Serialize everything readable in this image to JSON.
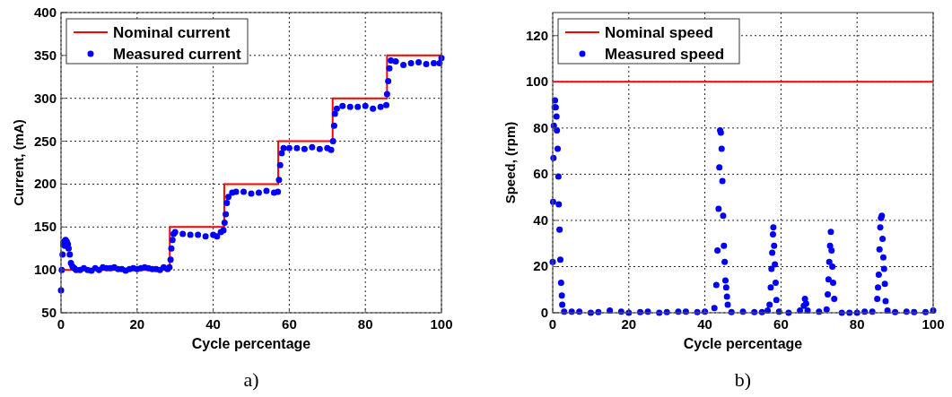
{
  "chart_data": [
    {
      "type": "scatter",
      "xlabel": "Cycle percentage",
      "ylabel": "Current, (mA)",
      "xlim": [
        0,
        100
      ],
      "ylim": [
        50,
        400
      ],
      "xticks": [
        0,
        20,
        40,
        60,
        80,
        100
      ],
      "yticks": [
        50,
        100,
        150,
        200,
        250,
        300,
        350,
        400
      ],
      "grid": true,
      "legend": "top left",
      "annotations": [
        "a)"
      ],
      "series": [
        {
          "name": "Nominal current",
          "type": "step",
          "color": "#ff0000",
          "marker": "none",
          "x": [
            0,
            28.6,
            42.9,
            57.1,
            71.4,
            85.7,
            100
          ],
          "values": [
            100,
            150,
            200,
            250,
            300,
            350,
            350
          ]
        },
        {
          "name": "Measured current",
          "color": "#0000ff",
          "marker": "circle",
          "x": [
            0,
            0.2,
            0.4,
            0.6,
            0.8,
            1.0,
            1.2,
            1.5,
            1.8,
            2,
            2.3,
            2.6,
            3,
            3.5,
            4,
            5,
            6,
            7,
            8,
            9,
            10,
            11,
            12,
            13,
            14,
            15,
            16,
            17,
            18,
            19,
            20,
            21,
            22,
            23,
            24,
            25,
            26,
            27,
            28,
            28.5,
            28.8,
            29,
            29.3,
            29.6,
            30,
            32,
            34,
            36,
            38,
            40,
            41,
            42,
            42.7,
            43,
            43.3,
            43.6,
            44,
            45,
            46,
            48,
            50,
            52,
            54,
            56,
            57,
            57.3,
            57.6,
            58,
            58.5,
            60,
            62,
            64,
            66,
            68,
            70,
            71,
            71.5,
            71.8,
            72,
            72.5,
            74,
            76,
            78,
            80,
            82,
            84,
            85.5,
            85.7,
            86,
            86.3,
            86.7,
            88,
            90,
            92,
            94,
            96,
            98,
            99.5,
            100
          ],
          "values": [
            76,
            100,
            118,
            130,
            133,
            128,
            135,
            133,
            130,
            125,
            118,
            108,
            104,
            102,
            100,
            100,
            102,
            100,
            99,
            102,
            100,
            103,
            102,
            102,
            103,
            101,
            101,
            99,
            101,
            102,
            101,
            102,
            103,
            102,
            101,
            101,
            100,
            103,
            101,
            103,
            112,
            125,
            135,
            142,
            144,
            142,
            141,
            141,
            139,
            141,
            139,
            144,
            146,
            155,
            165,
            178,
            185,
            190,
            191,
            191,
            189,
            190,
            192,
            190,
            191,
            205,
            222,
            236,
            242,
            242,
            242,
            241,
            243,
            241,
            242,
            240,
            250,
            268,
            282,
            288,
            291,
            290,
            290,
            291,
            288,
            290,
            292,
            305,
            320,
            335,
            344,
            343,
            339,
            341,
            342,
            340,
            341,
            341,
            347
          ]
        }
      ]
    },
    {
      "type": "scatter",
      "xlabel": "Cycle percentage",
      "ylabel": "Speed, (rpm)",
      "xlim": [
        0,
        100
      ],
      "ylim": [
        0,
        130
      ],
      "xticks": [
        0,
        20,
        40,
        60,
        80,
        100
      ],
      "yticks": [
        0,
        20,
        40,
        60,
        80,
        100,
        120
      ],
      "grid": true,
      "legend": "top left",
      "annotations": [
        "b)"
      ],
      "series": [
        {
          "name": "Nominal speed",
          "type": "line",
          "color": "#ff0000",
          "marker": "none",
          "x": [
            0,
            100
          ],
          "values": [
            100,
            100
          ]
        },
        {
          "name": "Measured speed",
          "color": "#0000ff",
          "marker": "circle",
          "x": [
            0,
            0.1,
            0.2,
            0.3,
            0.5,
            0.6,
            0.8,
            1.0,
            1.1,
            1.3,
            1.5,
            1.6,
            1.8,
            2.0,
            2.2,
            2.4,
            2.5,
            3,
            5,
            7,
            10,
            12,
            15,
            18,
            20,
            23,
            25,
            28,
            30,
            33,
            35,
            38,
            40,
            42.5,
            43,
            43.3,
            43.6,
            43.8,
            44,
            44.2,
            44.4,
            44.6,
            44.8,
            45,
            45.2,
            45.4,
            45.6,
            45.8,
            46,
            47,
            50,
            53,
            55,
            56.5,
            57,
            57.3,
            57.5,
            57.7,
            57.9,
            58,
            58.2,
            58.4,
            58.6,
            58.8,
            59.5,
            62,
            65,
            66,
            66.3,
            66.6,
            67,
            70,
            72,
            72.3,
            72.5,
            72.7,
            72.9,
            73.1,
            73.3,
            73.5,
            73.7,
            74,
            76,
            78,
            80,
            82,
            84,
            85.3,
            85.5,
            85.7,
            85.9,
            86.1,
            86.3,
            86.5,
            86.7,
            86.9,
            87.1,
            87.3,
            87.5,
            88,
            90,
            93,
            95,
            98,
            100
          ],
          "values": [
            22,
            48,
            67,
            81,
            89,
            92,
            89,
            85,
            79,
            71,
            59,
            47,
            36,
            23,
            13,
            7.5,
            3.5,
            0.5,
            0.5,
            0.5,
            0,
            0.3,
            1,
            0.5,
            0,
            0.3,
            0.5,
            0,
            0.3,
            0.5,
            0.5,
            0.3,
            0.5,
            2,
            12,
            27,
            45,
            63,
            79,
            78,
            71,
            57,
            42,
            29,
            22,
            14,
            11,
            7,
            3.5,
            0.3,
            0.5,
            0.3,
            0.3,
            1,
            3.5,
            11,
            19,
            26,
            34,
            37,
            29,
            21,
            13,
            5.5,
            0.5,
            0,
            1,
            3,
            6,
            4,
            1,
            0.5,
            1.5,
            8,
            14.5,
            22,
            29,
            35,
            27,
            20,
            13,
            6,
            0,
            0,
            0,
            0.5,
            0.5,
            6,
            11,
            16.5,
            27.5,
            37,
            41,
            42,
            32,
            24,
            19,
            12.5,
            5,
            1,
            0.3,
            0.5,
            0.3,
            0.3,
            1
          ]
        }
      ]
    }
  ]
}
